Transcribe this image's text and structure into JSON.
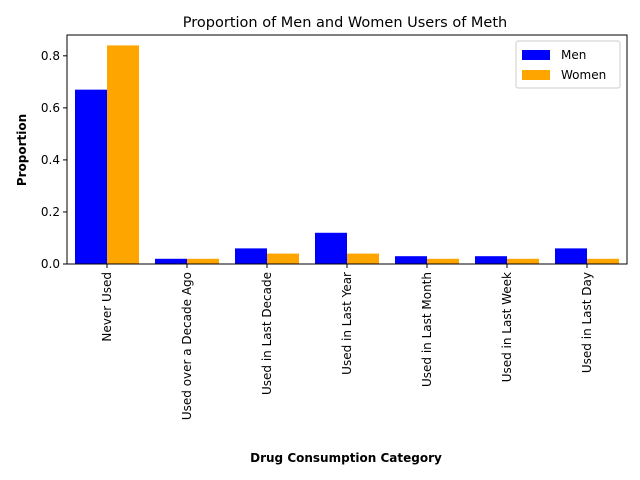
{
  "chart_data": {
    "type": "bar",
    "title": "Proportion of Men and Women Users of Meth",
    "xlabel": "Drug Consumption Category",
    "ylabel": "Proportion",
    "categories": [
      "Never Used",
      "Used over a Decade Ago",
      "Used in Last Decade",
      "Used in Last Year",
      "Used in Last Month",
      "Used in Last Week",
      "Used in Last Day"
    ],
    "series": [
      {
        "name": "Men",
        "color": "#0000ff",
        "values": [
          0.67,
          0.02,
          0.06,
          0.12,
          0.03,
          0.03,
          0.06
        ]
      },
      {
        "name": "Women",
        "color": "#ffa500",
        "values": [
          0.84,
          0.02,
          0.04,
          0.04,
          0.02,
          0.02,
          0.02
        ]
      }
    ],
    "ylim": [
      0,
      0.88
    ],
    "yticks": [
      "0.0",
      "0.2",
      "0.4",
      "0.6",
      "0.8"
    ],
    "grid": false,
    "legend": "top-right"
  }
}
